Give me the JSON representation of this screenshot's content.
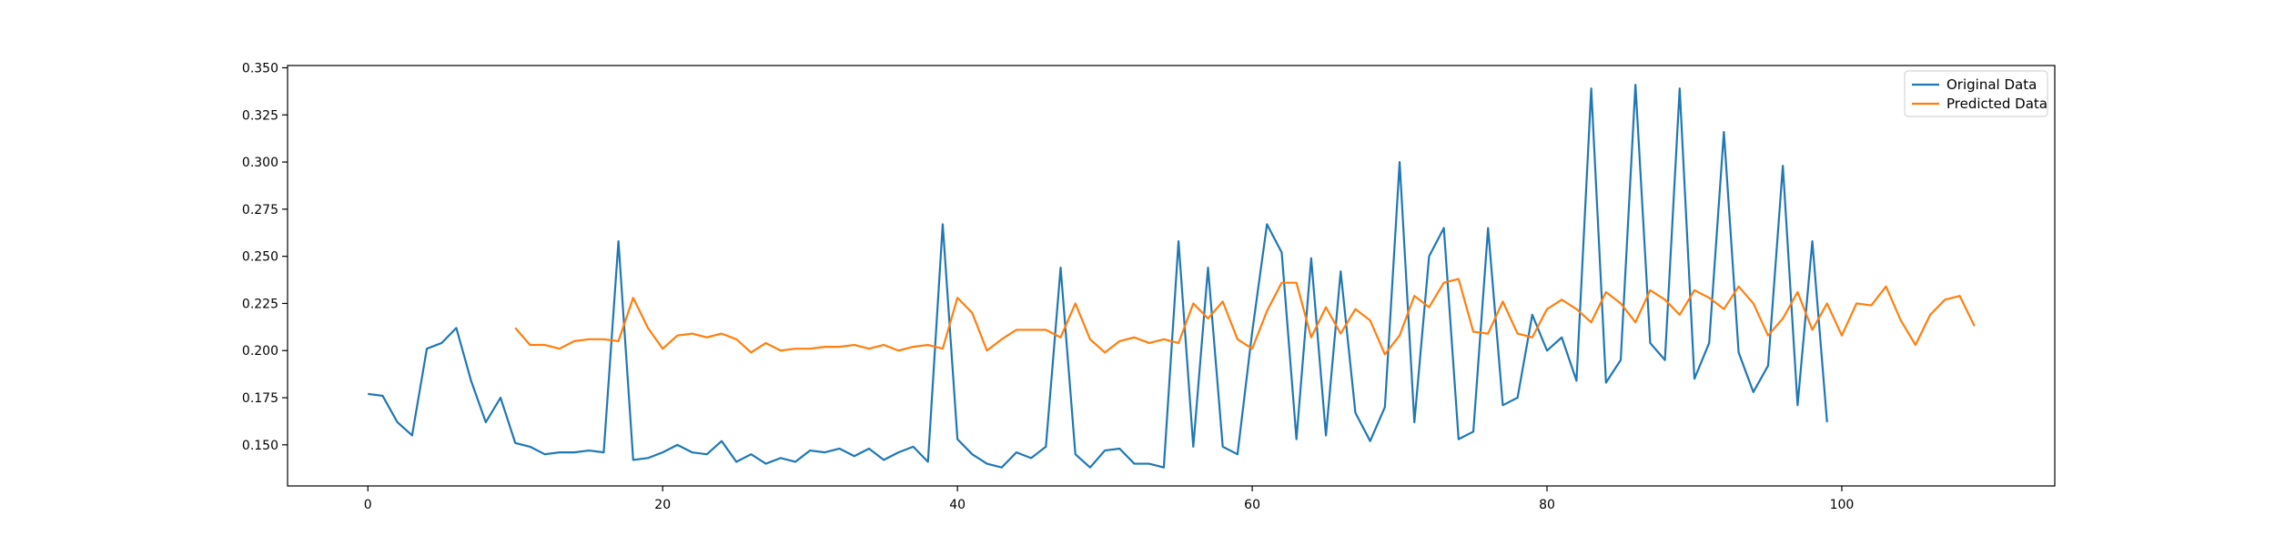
{
  "chart_data": {
    "type": "line",
    "title": "",
    "xlabel": "",
    "ylabel": "",
    "xlim": [
      -5.45,
      114.45
    ],
    "ylim": [
      0.1282,
      0.3512
    ],
    "x_ticks": [
      0,
      20,
      40,
      60,
      80,
      100
    ],
    "y_ticks": [
      0.15,
      0.175,
      0.2,
      0.225,
      0.25,
      0.275,
      0.3,
      0.325,
      0.35
    ],
    "x_tick_labels": [
      "0",
      "20",
      "40",
      "60",
      "80",
      "100"
    ],
    "y_tick_labels": [
      "0.150",
      "0.175",
      "0.200",
      "0.225",
      "0.250",
      "0.275",
      "0.300",
      "0.325",
      "0.350"
    ],
    "grid": false,
    "legend_position": "top-right",
    "series": [
      {
        "name": "Original Data",
        "color": "#1f77b4",
        "x_start": 0,
        "values": [
          0.177,
          0.176,
          0.162,
          0.155,
          0.201,
          0.204,
          0.212,
          0.184,
          0.162,
          0.175,
          0.151,
          0.149,
          0.145,
          0.146,
          0.146,
          0.147,
          0.146,
          0.258,
          0.142,
          0.143,
          0.146,
          0.15,
          0.146,
          0.145,
          0.152,
          0.141,
          0.145,
          0.14,
          0.143,
          0.141,
          0.147,
          0.146,
          0.148,
          0.144,
          0.148,
          0.142,
          0.146,
          0.149,
          0.141,
          0.267,
          0.153,
          0.145,
          0.14,
          0.138,
          0.146,
          0.143,
          0.149,
          0.244,
          0.145,
          0.138,
          0.147,
          0.148,
          0.14,
          0.14,
          0.138,
          0.258,
          0.149,
          0.244,
          0.149,
          0.145,
          0.21,
          0.267,
          0.252,
          0.153,
          0.249,
          0.155,
          0.242,
          0.167,
          0.152,
          0.17,
          0.3,
          0.162,
          0.25,
          0.265,
          0.153,
          0.157,
          0.265,
          0.171,
          0.175,
          0.219,
          0.2,
          0.207,
          0.184,
          0.339,
          0.183,
          0.195,
          0.341,
          0.204,
          0.195,
          0.339,
          0.185,
          0.204,
          0.316,
          0.199,
          0.178,
          0.192,
          0.298,
          0.171,
          0.258,
          0.162
        ]
      },
      {
        "name": "Predicted Data",
        "color": "#ff7f0e",
        "x_start": 10,
        "values": [
          0.212,
          0.203,
          0.203,
          0.201,
          0.205,
          0.206,
          0.206,
          0.205,
          0.228,
          0.212,
          0.201,
          0.208,
          0.209,
          0.207,
          0.209,
          0.206,
          0.199,
          0.204,
          0.2,
          0.201,
          0.201,
          0.202,
          0.202,
          0.203,
          0.201,
          0.203,
          0.2,
          0.202,
          0.203,
          0.201,
          0.228,
          0.22,
          0.2,
          0.206,
          0.211,
          0.211,
          0.211,
          0.207,
          0.225,
          0.206,
          0.199,
          0.205,
          0.207,
          0.204,
          0.206,
          0.204,
          0.225,
          0.217,
          0.226,
          0.206,
          0.201,
          0.221,
          0.236,
          0.236,
          0.207,
          0.223,
          0.209,
          0.222,
          0.216,
          0.198,
          0.208,
          0.229,
          0.223,
          0.236,
          0.238,
          0.21,
          0.209,
          0.226,
          0.209,
          0.207,
          0.222,
          0.227,
          0.222,
          0.215,
          0.231,
          0.225,
          0.215,
          0.232,
          0.227,
          0.219,
          0.232,
          0.228,
          0.222,
          0.234,
          0.225,
          0.208,
          0.217,
          0.231,
          0.211,
          0.225,
          0.208,
          0.225,
          0.224,
          0.234,
          0.216,
          0.203,
          0.219,
          0.227,
          0.229,
          0.213
        ]
      }
    ]
  }
}
